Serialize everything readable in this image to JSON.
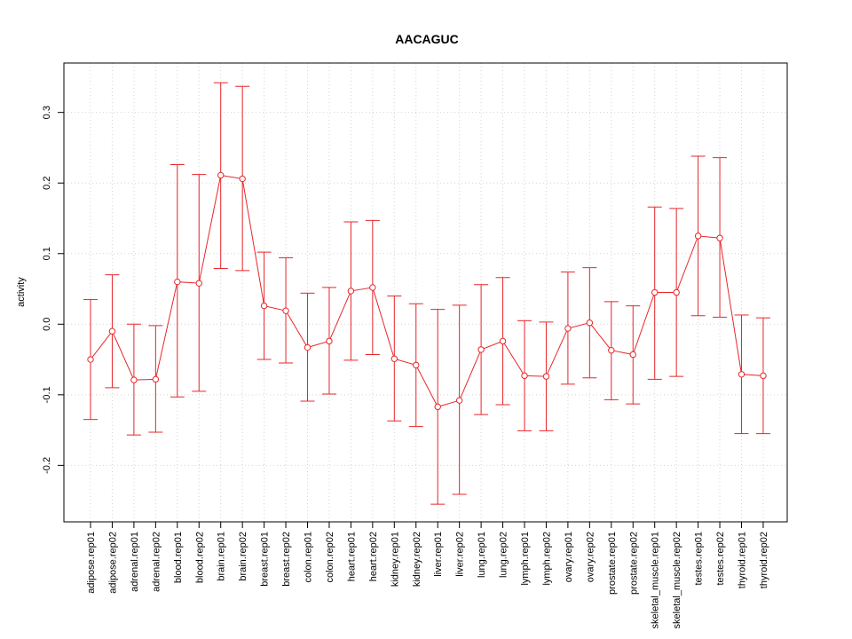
{
  "chart_data": {
    "type": "line",
    "title": "AACAGUC",
    "xlabel": "",
    "ylabel": "activity",
    "ylim": [
      -0.28,
      0.37
    ],
    "yticks": [
      -0.2,
      -0.1,
      0.0,
      0.1,
      0.2,
      0.3
    ],
    "ytick_labels": [
      "-0.2",
      "-0.1",
      "0.0",
      "0.1",
      "0.2",
      "0.3"
    ],
    "grid": true,
    "color": "#e8262a",
    "categories": [
      "adipose.rep01",
      "adipose.rep02",
      "adrenal.rep01",
      "adrenal.rep02",
      "blood.rep01",
      "blood.rep02",
      "brain.rep01",
      "brain.rep02",
      "breast.rep01",
      "breast.rep02",
      "colon.rep01",
      "colon.rep02",
      "heart.rep01",
      "heart.rep02",
      "kidney.rep01",
      "kidney.rep02",
      "liver.rep01",
      "liver.rep02",
      "lung.rep01",
      "lung.rep02",
      "lymph.rep01",
      "lymph.rep02",
      "ovary.rep01",
      "ovary.rep02",
      "prostate.rep01",
      "prostate.rep02",
      "skeletal_muscle.rep01",
      "skeletal_muscle.rep02",
      "testes.rep01",
      "testes.rep02",
      "thyroid.rep01",
      "thyroid.rep02"
    ],
    "values": [
      -0.05,
      -0.01,
      -0.079,
      -0.078,
      0.06,
      0.058,
      0.211,
      0.206,
      0.026,
      0.019,
      -0.033,
      -0.024,
      0.047,
      0.052,
      -0.049,
      -0.058,
      -0.117,
      -0.108,
      -0.036,
      -0.024,
      -0.073,
      -0.074,
      -0.006,
      0.002,
      -0.037,
      -0.043,
      0.045,
      0.045,
      0.125,
      0.122,
      -0.071,
      -0.073
    ],
    "upper": [
      0.035,
      0.07,
      0.0,
      -0.002,
      0.226,
      0.212,
      0.342,
      0.337,
      0.102,
      0.094,
      0.044,
      0.052,
      0.145,
      0.147,
      0.04,
      0.029,
      0.021,
      0.027,
      0.056,
      0.066,
      0.005,
      0.003,
      0.074,
      0.08,
      0.032,
      0.026,
      0.166,
      0.164,
      0.238,
      0.236,
      0.013,
      0.009
    ],
    "lower": [
      -0.135,
      -0.09,
      -0.157,
      -0.153,
      -0.103,
      -0.095,
      0.079,
      0.076,
      -0.05,
      -0.055,
      -0.109,
      -0.099,
      -0.051,
      -0.043,
      -0.137,
      -0.145,
      -0.255,
      -0.241,
      -0.128,
      -0.114,
      -0.151,
      -0.151,
      -0.085,
      -0.076,
      -0.107,
      -0.113,
      -0.078,
      -0.074,
      0.012,
      0.01,
      -0.155,
      -0.155
    ]
  }
}
